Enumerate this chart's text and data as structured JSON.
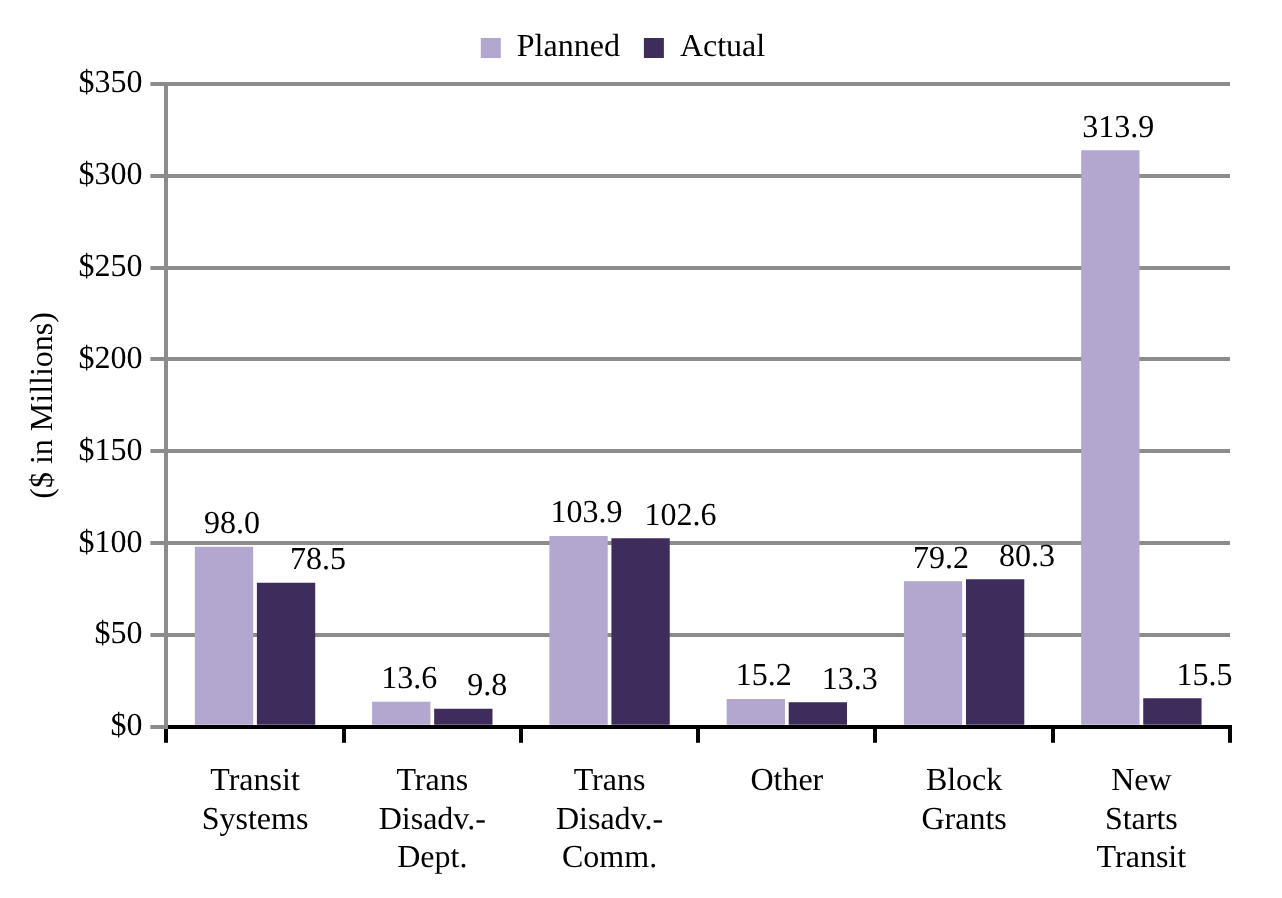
{
  "chart_data": {
    "type": "bar",
    "ylabel": "($ in Millions)",
    "categories": [
      "Transit Systems",
      "Trans Disadv.- Dept.",
      "Trans Disadv.- Comm.",
      "Other",
      "Block Grants",
      "New Starts Transit"
    ],
    "series": [
      {
        "name": "Planned",
        "color": "#b3a6cf",
        "values": [
          98.0,
          13.6,
          103.9,
          15.2,
          79.2,
          313.9
        ],
        "value_labels": [
          "98.0",
          "13.6",
          "103.9",
          "15.2",
          "79.2",
          "313.9"
        ]
      },
      {
        "name": "Actual",
        "color": "#3e2d5c",
        "values": [
          78.5,
          9.8,
          102.6,
          13.3,
          80.3,
          15.5
        ],
        "value_labels": [
          "78.5",
          "9.8",
          "102.6",
          "13.3",
          "80.3",
          "15.5"
        ]
      }
    ],
    "ylim": [
      0,
      350
    ],
    "yticks": [
      {
        "value": 0,
        "label": "$0"
      },
      {
        "value": 50,
        "label": "$50"
      },
      {
        "value": 100,
        "label": "$100"
      },
      {
        "value": 150,
        "label": "$150"
      },
      {
        "value": 200,
        "label": "$200"
      },
      {
        "value": 250,
        "label": "$250"
      },
      {
        "value": 300,
        "label": "$300"
      },
      {
        "value": 350,
        "label": "$350"
      }
    ],
    "grid": "y",
    "legend": "top"
  }
}
